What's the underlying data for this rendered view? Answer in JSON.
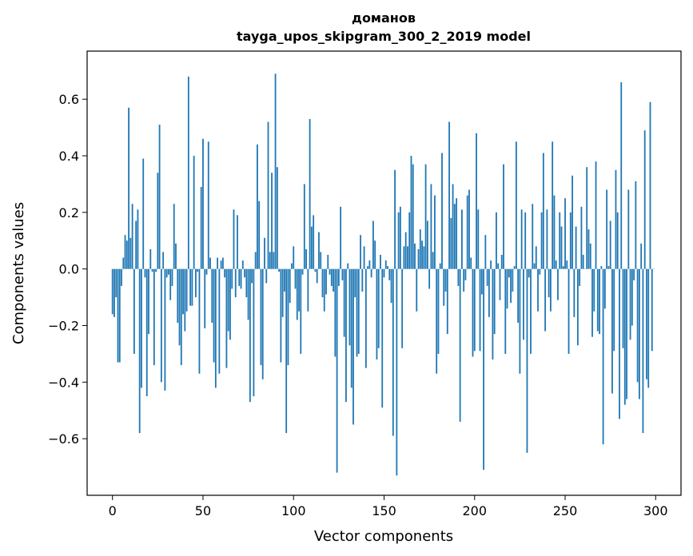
{
  "chart_data": {
    "type": "bar",
    "title_line1": "доманов",
    "title_line2": "tayga_upos_skipgram_300_2_2019 model",
    "xlabel": "Vector components",
    "ylabel": "Components values",
    "xlim": [
      -14,
      314
    ],
    "ylim": [
      -0.8,
      0.77
    ],
    "xticks": [
      0,
      50,
      100,
      150,
      200,
      250,
      300
    ],
    "yticks": [
      -0.6,
      -0.4,
      -0.2,
      0.0,
      0.2,
      0.4,
      0.6
    ],
    "xtick_labels": [
      "0",
      "50",
      "100",
      "150",
      "200",
      "250",
      "300"
    ],
    "ytick_labels": [
      "−0.6",
      "−0.4",
      "−0.2",
      "0.0",
      "0.2",
      "0.4",
      "0.6"
    ],
    "bar_color": "#1f77b4",
    "values": [
      -0.16,
      -0.17,
      -0.1,
      -0.33,
      -0.33,
      -0.06,
      0.04,
      0.12,
      0.1,
      0.57,
      0.11,
      0.23,
      -0.3,
      0.17,
      0.21,
      -0.58,
      -0.42,
      0.39,
      -0.03,
      -0.45,
      -0.23,
      0.07,
      -0.01,
      -0.34,
      -0.01,
      0.34,
      0.51,
      -0.4,
      0.06,
      -0.43,
      -0.03,
      -0.02,
      -0.11,
      -0.06,
      0.23,
      0.09,
      -0.19,
      -0.27,
      -0.34,
      -0.16,
      -0.22,
      -0.15,
      0.68,
      -0.13,
      -0.13,
      0.4,
      -0.1,
      -0.01,
      -0.37,
      0.29,
      0.46,
      -0.21,
      -0.02,
      0.45,
      0.04,
      -0.19,
      -0.33,
      -0.42,
      0.04,
      -0.37,
      0.03,
      0.04,
      -0.03,
      -0.35,
      -0.22,
      -0.25,
      -0.07,
      0.21,
      -0.1,
      0.19,
      -0.06,
      -0.07,
      0.03,
      -0.03,
      -0.1,
      -0.18,
      -0.47,
      -0.05,
      -0.45,
      0.06,
      0.44,
      0.24,
      -0.34,
      -0.39,
      0.11,
      -0.05,
      0.52,
      0.06,
      0.34,
      0.06,
      0.69,
      0.36,
      -0.01,
      -0.33,
      -0.17,
      -0.08,
      -0.58,
      -0.34,
      -0.12,
      0.02,
      0.08,
      -0.07,
      -0.18,
      -0.15,
      -0.3,
      -0.02,
      0.3,
      0.07,
      -0.15,
      0.53,
      0.15,
      0.19,
      -0.01,
      -0.05,
      0.13,
      0.06,
      -0.1,
      -0.15,
      -0.09,
      0.05,
      -0.02,
      -0.06,
      -0.08,
      -0.31,
      -0.72,
      -0.06,
      0.22,
      -0.04,
      -0.24,
      -0.47,
      0.02,
      -0.27,
      -0.42,
      -0.55,
      -0.1,
      -0.31,
      -0.3,
      0.12,
      -0.08,
      0.08,
      -0.35,
      0.01,
      0.03,
      -0.03,
      0.17,
      0.1,
      -0.32,
      -0.28,
      0.05,
      -0.49,
      -0.03,
      0.03,
      0.01,
      -0.04,
      -0.12,
      -0.59,
      0.35,
      -0.73,
      0.2,
      0.22,
      -0.28,
      0.08,
      0.13,
      0.08,
      0.2,
      0.4,
      0.37,
      0.09,
      -0.15,
      0.07,
      0.14,
      0.1,
      0.08,
      0.37,
      0.17,
      -0.07,
      0.3,
      0.06,
      0.26,
      -0.37,
      -0.3,
      0.02,
      0.41,
      -0.13,
      -0.08,
      -0.23,
      0.52,
      0.18,
      0.3,
      0.23,
      0.25,
      -0.06,
      -0.54,
      0.21,
      -0.08,
      -0.04,
      0.26,
      0.28,
      0.04,
      -0.31,
      -0.29,
      0.48,
      0.21,
      -0.29,
      -0.09,
      -0.71,
      0.12,
      -0.06,
      -0.17,
      0.03,
      -0.32,
      -0.23,
      0.2,
      0.02,
      -0.11,
      0.05,
      0.37,
      -0.3,
      -0.14,
      -0.03,
      -0.12,
      -0.08,
      0.01,
      0.45,
      -0.19,
      -0.37,
      0.21,
      -0.25,
      0.2,
      -0.65,
      -0.03,
      -0.3,
      0.23,
      0.02,
      0.08,
      -0.15,
      -0.02,
      0.2,
      0.41,
      -0.22,
      0.21,
      -0.1,
      -0.15,
      0.45,
      0.26,
      0.03,
      -0.11,
      0.2,
      0.15,
      0.01,
      0.25,
      0.03,
      -0.3,
      0.2,
      0.33,
      -0.17,
      0.15,
      -0.27,
      -0.06,
      0.22,
      0.05,
      0.0,
      0.36,
      0.14,
      0.09,
      -0.24,
      -0.15,
      0.38,
      -0.22,
      -0.23,
      0.01,
      -0.62,
      -0.14,
      0.28,
      0.01,
      0.17,
      -0.44,
      -0.29,
      0.35,
      0.2,
      -0.53,
      0.66,
      -0.28,
      -0.48,
      -0.46,
      0.28,
      -0.25,
      -0.2,
      -0.04,
      0.31,
      -0.4,
      -0.46,
      0.09,
      -0.58,
      0.49,
      -0.39,
      -0.42,
      0.59,
      -0.29,
      0.0
    ]
  }
}
